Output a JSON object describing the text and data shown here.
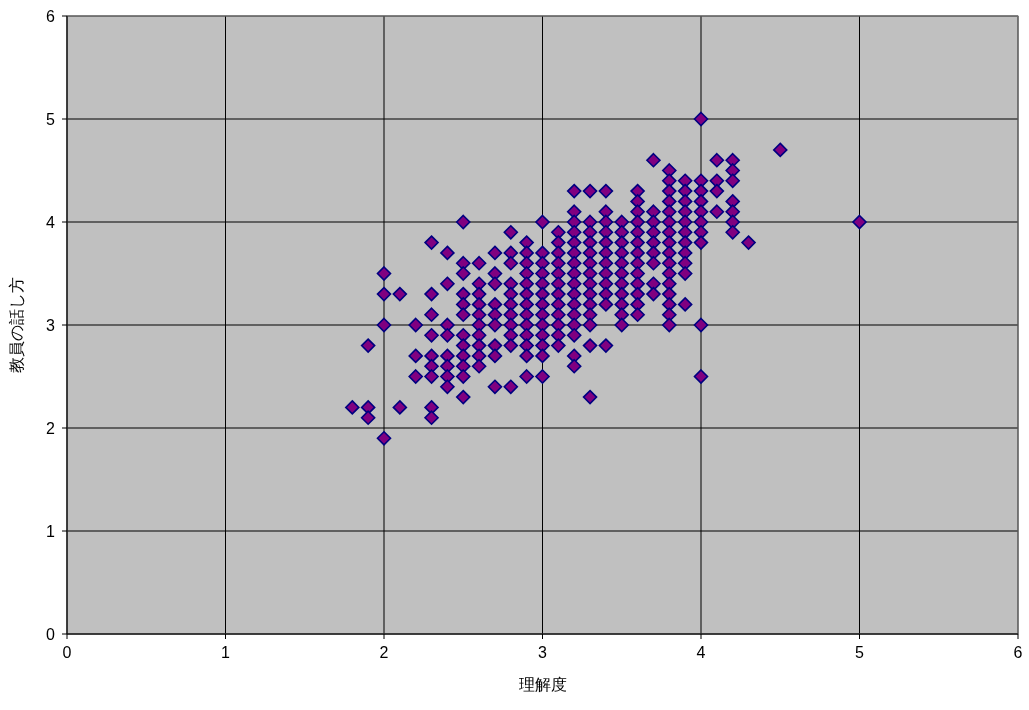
{
  "chart_data": {
    "type": "scatter",
    "xlabel": "理解度",
    "ylabel": "教員の話し方",
    "xlim": [
      0,
      6
    ],
    "ylim": [
      0,
      6
    ],
    "xticks": [
      0,
      1,
      2,
      3,
      4,
      5,
      6
    ],
    "yticks": [
      0,
      1,
      2,
      3,
      4,
      5,
      6
    ],
    "grid": true,
    "marker": "diamond",
    "series": [
      {
        "color": "#800080",
        "x": [
          1.8,
          1.9,
          1.9,
          1.9,
          2.0,
          2.0,
          2.0,
          2.0,
          2.1,
          2.1,
          2.2,
          2.2,
          2.2,
          2.3,
          2.3,
          2.3,
          2.3,
          2.3,
          2.3,
          2.3,
          2.3,
          2.3,
          2.4,
          2.4,
          2.4,
          2.4,
          2.4,
          2.4,
          2.4,
          2.4,
          2.5,
          2.5,
          2.5,
          2.5,
          2.5,
          2.5,
          2.5,
          2.5,
          2.5,
          2.5,
          2.5,
          2.5,
          2.6,
          2.6,
          2.6,
          2.6,
          2.6,
          2.6,
          2.6,
          2.6,
          2.6,
          2.6,
          2.7,
          2.7,
          2.7,
          2.7,
          2.7,
          2.7,
          2.7,
          2.7,
          2.7,
          2.8,
          2.8,
          2.8,
          2.8,
          2.8,
          2.8,
          2.8,
          2.8,
          2.8,
          2.8,
          2.8,
          2.9,
          2.9,
          2.9,
          2.9,
          2.9,
          2.9,
          2.9,
          2.9,
          2.9,
          2.9,
          2.9,
          2.9,
          2.9,
          3.0,
          3.0,
          3.0,
          3.0,
          3.0,
          3.0,
          3.0,
          3.0,
          3.0,
          3.0,
          3.0,
          3.0,
          3.0,
          3.1,
          3.1,
          3.1,
          3.1,
          3.1,
          3.1,
          3.1,
          3.1,
          3.1,
          3.1,
          3.1,
          3.1,
          3.2,
          3.2,
          3.2,
          3.2,
          3.2,
          3.2,
          3.2,
          3.2,
          3.2,
          3.2,
          3.2,
          3.2,
          3.2,
          3.2,
          3.2,
          3.2,
          3.3,
          3.3,
          3.3,
          3.3,
          3.3,
          3.3,
          3.3,
          3.3,
          3.3,
          3.3,
          3.3,
          3.3,
          3.3,
          3.3,
          3.4,
          3.4,
          3.4,
          3.4,
          3.4,
          3.4,
          3.4,
          3.4,
          3.4,
          3.4,
          3.4,
          3.4,
          3.5,
          3.5,
          3.5,
          3.5,
          3.5,
          3.5,
          3.5,
          3.5,
          3.5,
          3.5,
          3.5,
          3.6,
          3.6,
          3.6,
          3.6,
          3.6,
          3.6,
          3.6,
          3.6,
          3.6,
          3.6,
          3.6,
          3.6,
          3.6,
          3.7,
          3.7,
          3.7,
          3.7,
          3.7,
          3.7,
          3.7,
          3.7,
          3.7,
          3.8,
          3.8,
          3.8,
          3.8,
          3.8,
          3.8,
          3.8,
          3.8,
          3.8,
          3.8,
          3.8,
          3.8,
          3.8,
          3.8,
          3.8,
          3.8,
          3.9,
          3.9,
          3.9,
          3.9,
          3.9,
          3.9,
          3.9,
          3.9,
          3.9,
          3.9,
          3.9,
          4.0,
          4.0,
          4.0,
          4.0,
          4.0,
          4.0,
          4.0,
          4.0,
          4.0,
          4.0,
          4.1,
          4.1,
          4.1,
          4.1,
          4.2,
          4.2,
          4.2,
          4.2,
          4.2,
          4.2,
          4.2,
          4.3,
          4.5,
          5.0
        ],
        "values": [
          2.2,
          2.8,
          2.2,
          2.1,
          3.5,
          3.3,
          3.0,
          1.9,
          3.3,
          2.2,
          3.0,
          2.7,
          2.5,
          3.8,
          3.3,
          3.1,
          2.9,
          2.7,
          2.6,
          2.5,
          2.2,
          2.1,
          3.7,
          3.4,
          3.0,
          2.9,
          2.7,
          2.6,
          2.5,
          2.4,
          4.0,
          3.6,
          3.5,
          3.3,
          3.2,
          3.1,
          2.9,
          2.8,
          2.7,
          2.6,
          2.5,
          2.3,
          3.6,
          3.4,
          3.3,
          3.2,
          3.1,
          3.0,
          2.9,
          2.8,
          2.7,
          2.6,
          3.7,
          3.5,
          3.4,
          3.2,
          3.1,
          3.0,
          2.8,
          2.7,
          2.4,
          3.9,
          3.7,
          3.6,
          3.4,
          3.3,
          3.2,
          3.1,
          3.0,
          2.9,
          2.8,
          2.4,
          3.8,
          3.7,
          3.6,
          3.5,
          3.4,
          3.3,
          3.2,
          3.1,
          3.0,
          2.9,
          2.8,
          2.7,
          2.5,
          4.0,
          3.7,
          3.6,
          3.5,
          3.4,
          3.3,
          3.2,
          3.1,
          3.0,
          2.9,
          2.8,
          2.7,
          2.5,
          3.9,
          3.8,
          3.7,
          3.6,
          3.5,
          3.4,
          3.3,
          3.2,
          3.1,
          3.0,
          2.9,
          2.8,
          4.3,
          4.1,
          4.0,
          3.9,
          3.8,
          3.7,
          3.6,
          3.5,
          3.4,
          3.3,
          3.2,
          3.1,
          3.0,
          2.9,
          2.7,
          2.6,
          4.3,
          4.0,
          3.9,
          3.8,
          3.7,
          3.6,
          3.5,
          3.4,
          3.3,
          3.2,
          3.1,
          3.0,
          2.8,
          2.3,
          4.3,
          4.1,
          4.0,
          3.9,
          3.8,
          3.7,
          3.6,
          3.5,
          3.4,
          3.3,
          3.2,
          2.8,
          4.0,
          3.9,
          3.8,
          3.7,
          3.6,
          3.5,
          3.4,
          3.3,
          3.2,
          3.1,
          3.0,
          4.3,
          4.2,
          4.1,
          4.0,
          3.9,
          3.8,
          3.7,
          3.6,
          3.5,
          3.4,
          3.3,
          3.2,
          3.1,
          4.6,
          4.1,
          4.0,
          3.9,
          3.8,
          3.7,
          3.6,
          3.4,
          3.3,
          4.5,
          4.4,
          4.3,
          4.2,
          4.1,
          4.0,
          3.9,
          3.8,
          3.7,
          3.6,
          3.5,
          3.4,
          3.3,
          3.2,
          3.1,
          3.0,
          4.4,
          4.3,
          4.2,
          4.1,
          4.0,
          3.9,
          3.8,
          3.7,
          3.6,
          3.5,
          3.2,
          5.0,
          4.4,
          4.3,
          4.2,
          4.1,
          4.0,
          3.9,
          3.8,
          3.0,
          2.5,
          4.6,
          4.4,
          4.3,
          4.1,
          4.6,
          4.5,
          4.4,
          4.2,
          4.1,
          4.0,
          3.9,
          3.8,
          4.7,
          4.0
        ]
      }
    ]
  }
}
